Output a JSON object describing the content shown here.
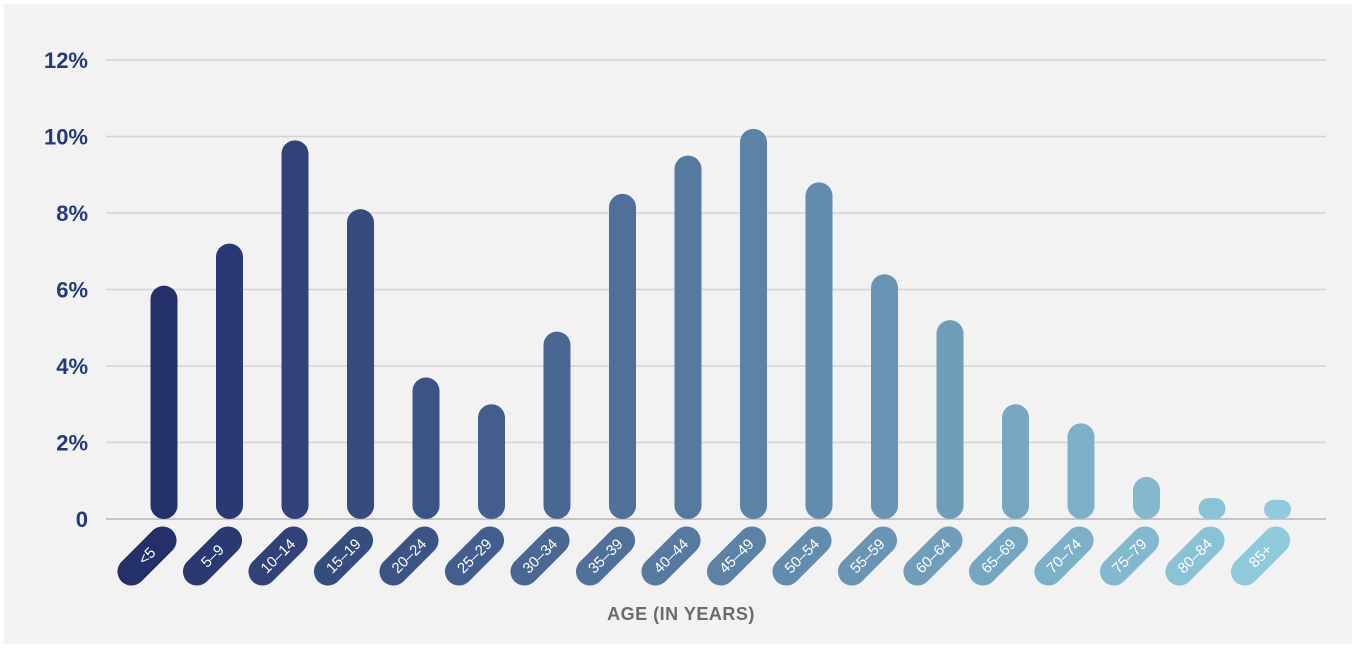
{
  "chart_data": {
    "type": "bar",
    "xlabel": "AGE (IN YEARS)",
    "ylabel": "",
    "categories": [
      "<5",
      "5–9",
      "10–14",
      "15–19",
      "20–24",
      "25–29",
      "30–34",
      "35–39",
      "40–44",
      "45–49",
      "50–54",
      "55–59",
      "60–64",
      "65–69",
      "70–74",
      "75–79",
      "80–84",
      "85+"
    ],
    "values": [
      6.1,
      7.2,
      9.9,
      8.1,
      3.7,
      3.0,
      4.9,
      8.5,
      9.5,
      10.2,
      8.8,
      6.4,
      5.2,
      3.0,
      2.5,
      1.1,
      0.55,
      0.5
    ],
    "ylim": [
      0,
      12
    ],
    "yticks": [
      0,
      2,
      4,
      6,
      8,
      10,
      12
    ],
    "ytick_labels": [
      "0",
      "2%",
      "4%",
      "6%",
      "8%",
      "10%",
      "12%"
    ],
    "grid": true,
    "legend": "none",
    "colors": {
      "bar_start": "#23306a",
      "bar_end": "#8fcbdc",
      "axis_text": "#243a78",
      "grid": "#d4d4d4",
      "xlabel": "#6b6b6b"
    }
  }
}
